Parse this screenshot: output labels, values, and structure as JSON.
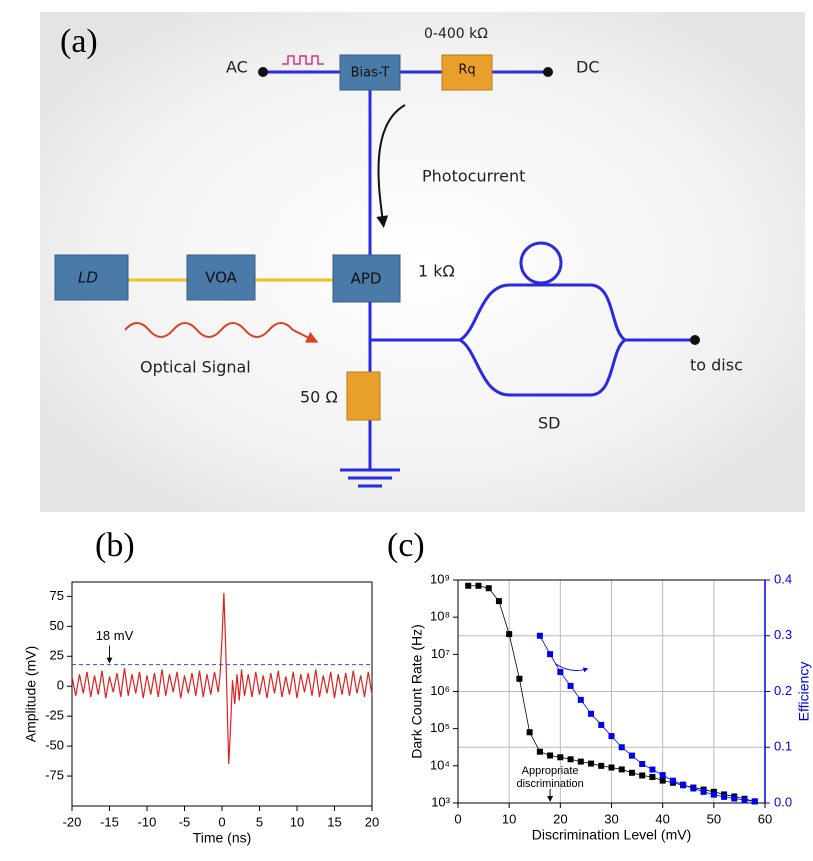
{
  "diagram": {
    "label": "(a)",
    "ac": "AC",
    "dc": "DC",
    "bias_t": "Bias-T",
    "rq": "Rq",
    "rq_range": "0-400 kΩ",
    "photocurrent": "Photocurrent",
    "ld": "LD",
    "voa": "VOA",
    "apd": "APD",
    "apd_r": "1 kΩ",
    "optical": "Optical Signal",
    "r50": "50 Ω",
    "sd": "SD",
    "to_disc": "to disc"
  },
  "chart_data": [
    {
      "type": "line",
      "label": "(b)",
      "xlabel": "Time (ns)",
      "ylabel": "Amplitude (mV)",
      "xlim": [
        -20,
        20
      ],
      "xticks": [
        -20,
        -15,
        -10,
        -5,
        0,
        5,
        10,
        15,
        20
      ],
      "ylim": [
        -100,
        87
      ],
      "yticks": [
        -75,
        -50,
        -25,
        0,
        25,
        50,
        75
      ],
      "threshold": 18,
      "threshold_color": "#3344ee",
      "annotation": "18 mV",
      "annotation_x": -15,
      "x": [
        -20,
        -19.5,
        -19,
        -18.5,
        -18,
        -17.5,
        -17,
        -16.5,
        -16,
        -15.5,
        -15,
        -14.5,
        -14,
        -13.5,
        -13,
        -12.5,
        -12,
        -11.5,
        -11,
        -10.5,
        -10,
        -9.5,
        -9,
        -8.5,
        -8,
        -7.5,
        -7,
        -6.5,
        -6,
        -5.5,
        -5,
        -4.5,
        -4,
        -3.5,
        -3,
        -2.5,
        -2,
        -1.5,
        -1,
        -0.5,
        -0.25,
        0,
        0.25,
        0.5,
        0.75,
        0.9,
        1.1,
        1.4,
        1.7,
        2,
        2.3,
        2.6,
        3,
        3.5,
        4,
        4.5,
        5,
        5.5,
        6,
        6.5,
        7,
        7.5,
        8,
        8.5,
        9,
        9.5,
        10,
        10.5,
        11,
        11.5,
        12,
        12.5,
        13,
        13.5,
        14,
        14.5,
        15,
        15.5,
        16,
        16.5,
        17,
        17.5,
        18,
        18.5,
        19,
        19.5,
        20
      ],
      "series": [
        {
          "name": "Amplitude",
          "color": "#e02020",
          "values": [
            8,
            -8,
            10,
            -6,
            12,
            -9,
            9,
            -7,
            13,
            -10,
            8,
            -5,
            11,
            -9,
            15,
            -8,
            10,
            -6,
            12,
            -10,
            9,
            -7,
            11,
            -9,
            14,
            -8,
            10,
            -5,
            12,
            -10,
            9,
            -6,
            11,
            -8,
            13,
            -9,
            10,
            -7,
            12,
            -5,
            10,
            40,
            78,
            30,
            -30,
            -65,
            -40,
            5,
            -15,
            10,
            -12,
            14,
            -8,
            10,
            -9,
            12,
            -7,
            9,
            -10,
            11,
            -6,
            13,
            -9,
            8,
            -7,
            12,
            -10,
            10,
            -5,
            11,
            -8,
            14,
            -9,
            9,
            -6,
            12,
            -10,
            10,
            -7,
            11,
            -8,
            13,
            -6,
            9,
            -9,
            12,
            -7
          ]
        }
      ]
    },
    {
      "type": "line",
      "label": "(c)",
      "xlabel": "Discrimination Level (mV)",
      "ylabel": "Dark Count Rate (Hz)",
      "y2label": "Efficiency",
      "xlim": [
        0,
        60
      ],
      "xticks": [
        0,
        10,
        20,
        30,
        40,
        50,
        60
      ],
      "yscale": "log",
      "ylim": [
        1000,
        1000000000
      ],
      "yticks": [
        {
          "value": 1000,
          "label": "10³"
        },
        {
          "value": 10000,
          "label": "10⁴"
        },
        {
          "value": 100000,
          "label": "10⁵"
        },
        {
          "value": 1000000,
          "label": "10⁶"
        },
        {
          "value": 10000000,
          "label": "10⁷"
        },
        {
          "value": 100000000,
          "label": "10⁸"
        },
        {
          "value": 1000000000,
          "label": "10⁹"
        }
      ],
      "y2lim": [
        0,
        0.4
      ],
      "y2ticks": [
        {
          "value": 0,
          "label": "0.0"
        },
        0.1,
        0.2,
        0.3,
        0.4
      ],
      "y2color": "#0000ee",
      "grid": [
        "x",
        "y2"
      ],
      "marker": "square",
      "annotation": [
        "Appropriate",
        "discrimination"
      ],
      "annotation_x": 18,
      "x": [
        2,
        4,
        6,
        8,
        10,
        12,
        14,
        16,
        18,
        20,
        22,
        24,
        26,
        28,
        30,
        32,
        34,
        36,
        38,
        40,
        42,
        44,
        46,
        48,
        50,
        52,
        54,
        56,
        58
      ],
      "series": [
        {
          "name": "Dark Count Rate",
          "color": "#000000",
          "values": [
            700000000,
            700000000,
            600000000,
            270000000,
            35000000,
            2200000,
            80000,
            24000,
            19000,
            17000,
            15000,
            13000,
            11500,
            10000,
            9000,
            8000,
            6500,
            5500,
            5000,
            4000,
            3500,
            3000,
            2600,
            2300,
            2000,
            1700,
            1500,
            1300,
            1100
          ]
        },
        {
          "name": "Efficiency",
          "color": "#0000ee",
          "axis": "y2",
          "values": [
            null,
            null,
            null,
            null,
            null,
            null,
            null,
            0.3,
            0.267,
            0.235,
            0.21,
            0.185,
            0.16,
            0.14,
            0.12,
            0.1,
            0.085,
            0.07,
            0.06,
            0.05,
            0.04,
            0.033,
            0.026,
            0.02,
            0.015,
            0.011,
            0.008,
            0.005,
            0.003
          ]
        }
      ]
    }
  ]
}
